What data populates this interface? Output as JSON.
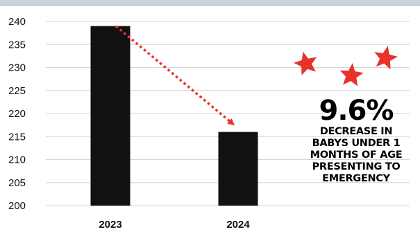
{
  "chart_data": {
    "type": "bar",
    "categories": [
      "2023",
      "2024"
    ],
    "values": [
      239,
      216
    ],
    "ylim": [
      200,
      240
    ],
    "yticks": [
      200,
      205,
      210,
      215,
      220,
      225,
      230,
      235,
      240
    ],
    "grid": true,
    "bar_color": "#111111",
    "arrow_color": "#e8332a"
  },
  "callout": {
    "value": "9.6%",
    "lines": [
      "DECREASE IN",
      "BABYS UNDER 1",
      "MONTHS OF AGE",
      "PRESENTING TO",
      "EMERGENCY"
    ]
  },
  "decorations": {
    "star_color": "#e8332a",
    "star_icon": "star-icon"
  }
}
